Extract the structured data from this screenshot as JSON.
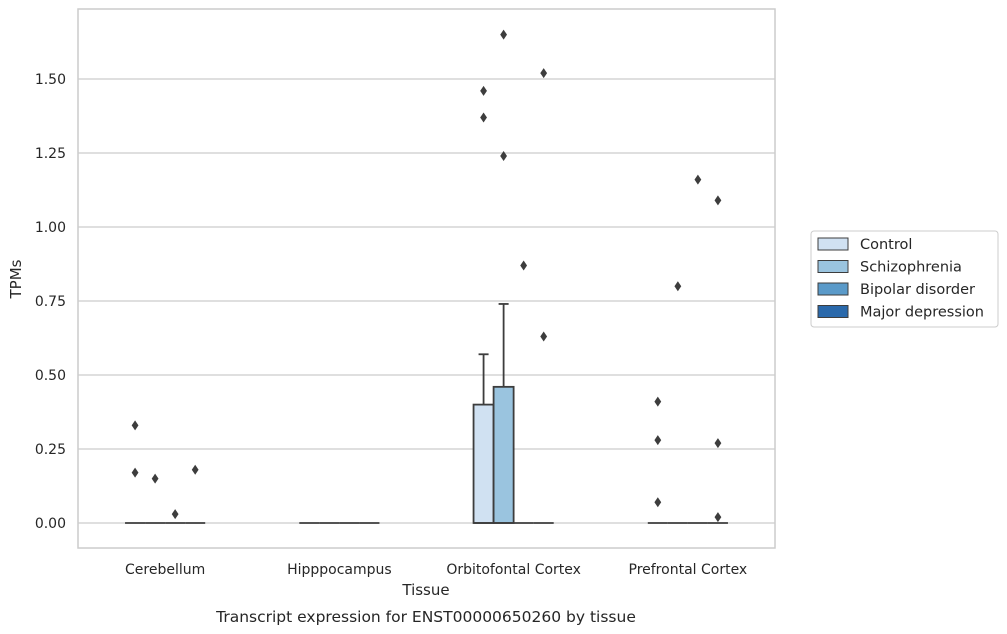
{
  "chart_data": {
    "type": "box",
    "caption": "Transcript expression for ENST00000650260 by tissue",
    "xlabel": "Tissue",
    "ylabel": "TPMs",
    "ylim": [
      -0.08,
      1.75
    ],
    "yticks": [
      0.0,
      0.25,
      0.5,
      0.75,
      1.0,
      1.25,
      1.5
    ],
    "ytick_labels": [
      "0.00",
      "0.25",
      "0.50",
      "0.75",
      "1.00",
      "1.25",
      "1.50"
    ],
    "grid": "horizontal",
    "legend_position": "right",
    "categories": [
      "Cerebellum",
      "Hipppocampus",
      "Orbitofontal Cortex",
      "Prefrontal Cortex"
    ],
    "series": [
      {
        "name": "Control",
        "color": "#d0e1f2",
        "boxes": [
          {
            "q1": 0,
            "median": 0,
            "q3": 0,
            "whisker_low": 0,
            "whisker_high": 0,
            "outliers": [
              0.17,
              0.33
            ]
          },
          {
            "q1": 0,
            "median": 0,
            "q3": 0,
            "whisker_low": 0,
            "whisker_high": 0,
            "outliers": []
          },
          {
            "q1": 0,
            "median": 0,
            "q3": 0.4,
            "whisker_low": 0,
            "whisker_high": 0.57,
            "outliers": [
              1.37,
              1.46
            ]
          },
          {
            "q1": 0,
            "median": 0,
            "q3": 0,
            "whisker_low": 0,
            "whisker_high": 0,
            "outliers": [
              0.07,
              0.28,
              0.41
            ]
          }
        ]
      },
      {
        "name": "Schizophrenia",
        "color": "#9ac4df",
        "boxes": [
          {
            "q1": 0,
            "median": 0,
            "q3": 0,
            "whisker_low": 0,
            "whisker_high": 0,
            "outliers": [
              0.15
            ]
          },
          {
            "q1": 0,
            "median": 0,
            "q3": 0,
            "whisker_low": 0,
            "whisker_high": 0,
            "outliers": []
          },
          {
            "q1": 0,
            "median": 0,
            "q3": 0.46,
            "whisker_low": 0,
            "whisker_high": 0.74,
            "outliers": [
              1.24,
              1.65
            ]
          },
          {
            "q1": 0,
            "median": 0,
            "q3": 0,
            "whisker_low": 0,
            "whisker_high": 0,
            "outliers": [
              0.8
            ]
          }
        ]
      },
      {
        "name": "Bipolar disorder",
        "color": "#5a9ac9",
        "boxes": [
          {
            "q1": 0,
            "median": 0,
            "q3": 0,
            "whisker_low": 0,
            "whisker_high": 0,
            "outliers": [
              0.03
            ]
          },
          {
            "q1": 0,
            "median": 0,
            "q3": 0,
            "whisker_low": 0,
            "whisker_high": 0,
            "outliers": []
          },
          {
            "q1": 0,
            "median": 0,
            "q3": 0,
            "whisker_low": 0,
            "whisker_high": 0,
            "outliers": [
              0.87
            ]
          },
          {
            "q1": 0,
            "median": 0,
            "q3": 0,
            "whisker_low": 0,
            "whisker_high": 0,
            "outliers": [
              1.16
            ]
          }
        ]
      },
      {
        "name": "Major depression",
        "color": "#2a69ab",
        "boxes": [
          {
            "q1": 0,
            "median": 0,
            "q3": 0,
            "whisker_low": 0,
            "whisker_high": 0,
            "outliers": [
              0.18
            ]
          },
          {
            "q1": 0,
            "median": 0,
            "q3": 0,
            "whisker_low": 0,
            "whisker_high": 0,
            "outliers": []
          },
          {
            "q1": 0,
            "median": 0,
            "q3": 0,
            "whisker_low": 0,
            "whisker_high": 0,
            "outliers": [
              0.63,
              1.52
            ]
          },
          {
            "q1": 0,
            "median": 0,
            "q3": 0,
            "whisker_low": 0,
            "whisker_high": 0,
            "outliers": [
              0.02,
              0.27,
              1.09
            ]
          }
        ]
      }
    ]
  }
}
